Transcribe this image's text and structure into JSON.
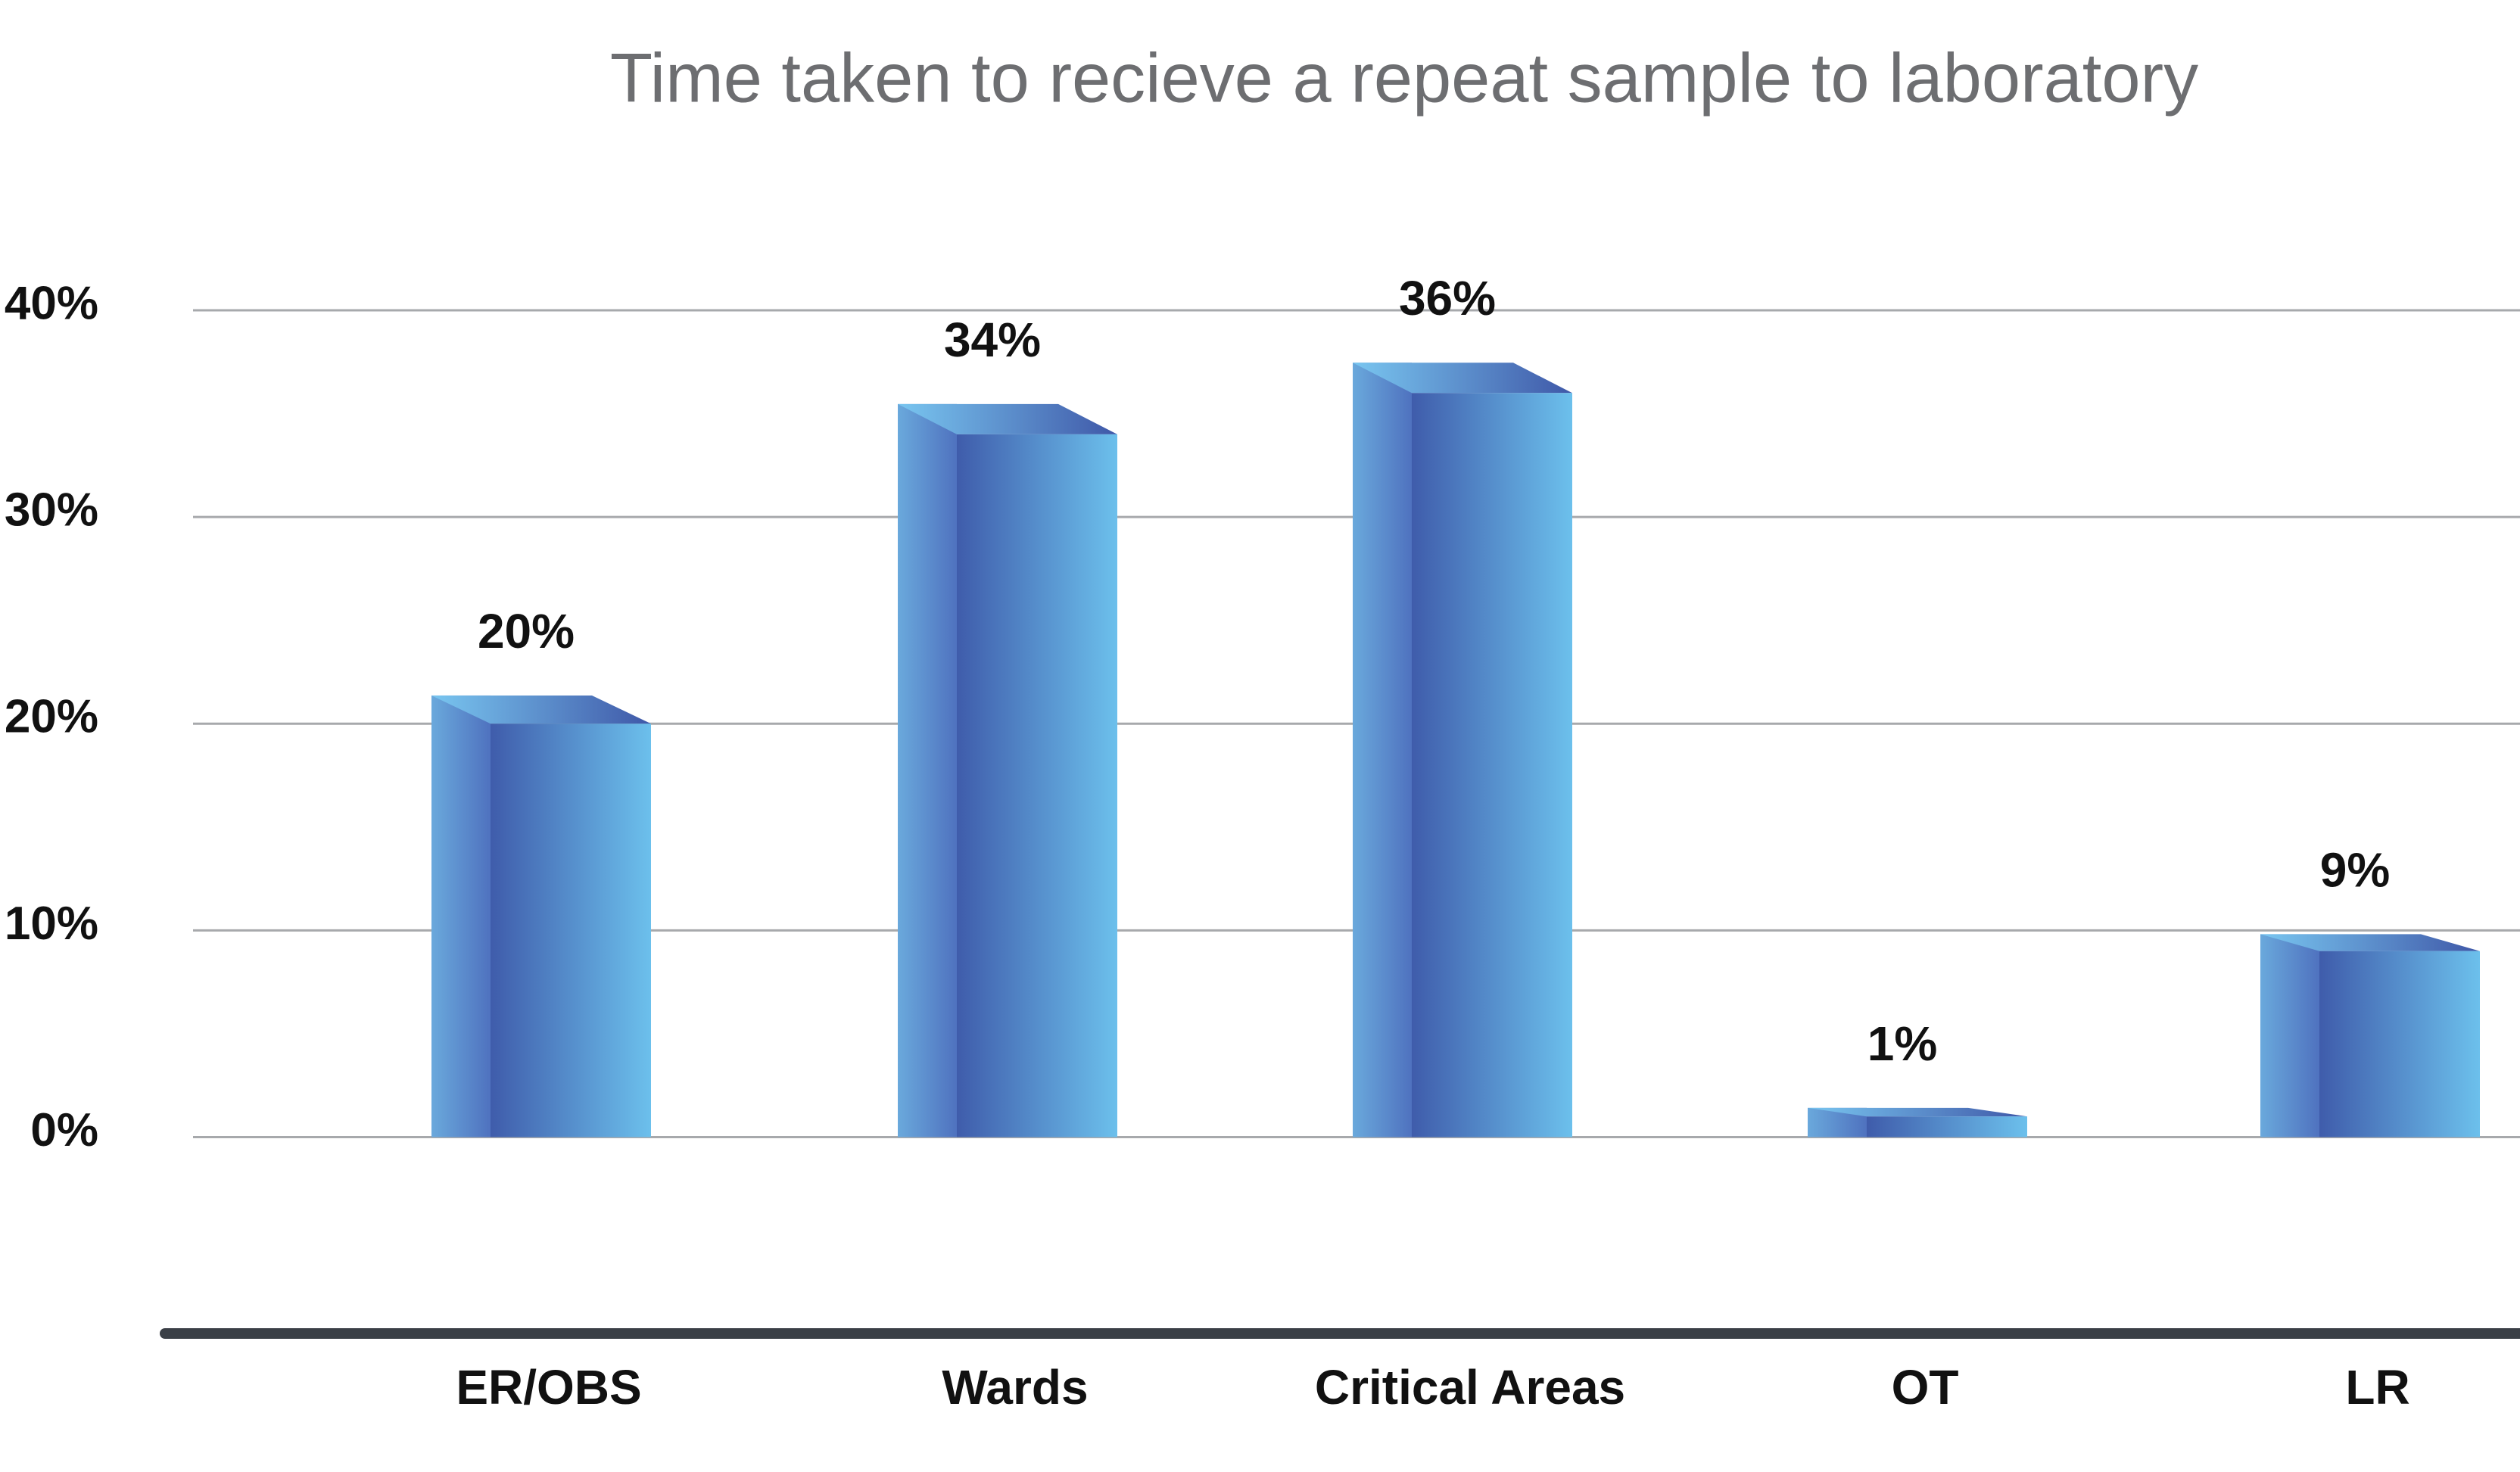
{
  "chart_data": {
    "type": "bar3d",
    "title": "Time taken to recieve a repeat sample to laboratory",
    "categories": [
      "ER/OBS",
      "Wards",
      "Critical Areas",
      "OT",
      "LR"
    ],
    "values": [
      20,
      34,
      36,
      1,
      9
    ],
    "value_labels": [
      "20%",
      "34%",
      "36%",
      "1%",
      "9%"
    ],
    "ylim": [
      -9.5,
      40
    ],
    "yticks": [
      {
        "value": 0,
        "label": "0%"
      },
      {
        "value": 10,
        "label": "10%"
      },
      {
        "value": 20,
        "label": "20%"
      },
      {
        "value": 30,
        "label": "30%"
      },
      {
        "value": 40,
        "label": "40%"
      }
    ],
    "grid": true,
    "color": "#4a6dbb"
  }
}
